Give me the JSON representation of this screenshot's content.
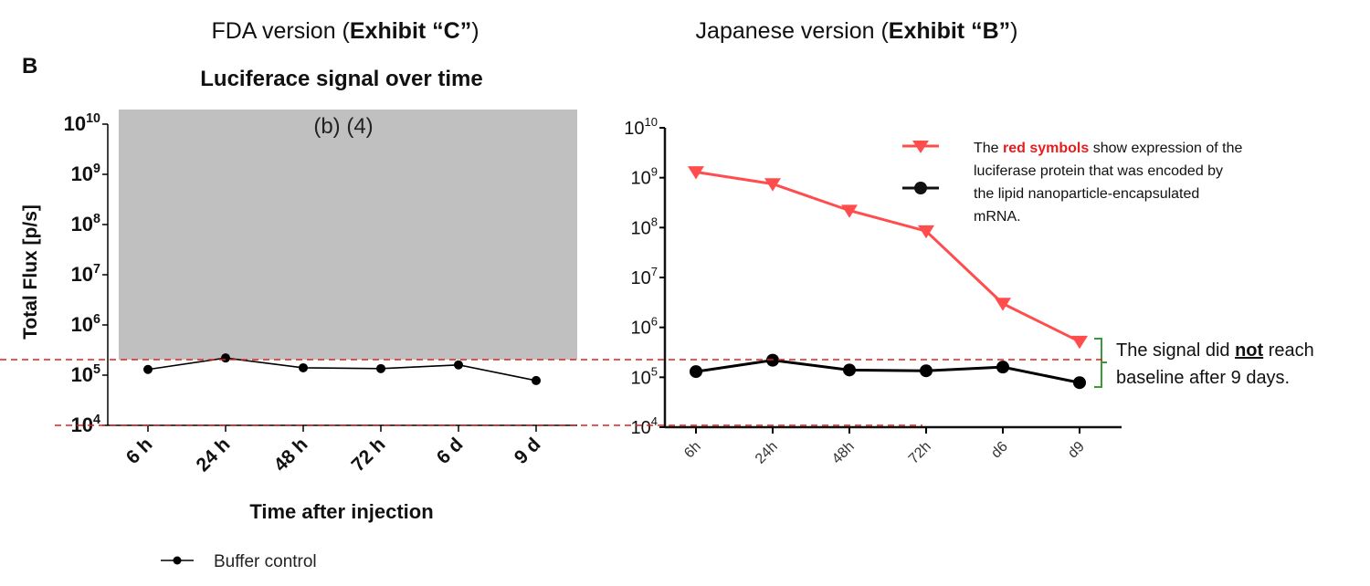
{
  "header": {
    "fda_prefix": "FDA version (",
    "fda_bold": "Exhibit “C”",
    "fda_suffix": ")",
    "jp_prefix": "Japanese version (",
    "jp_bold": "Exhibit “B”",
    "jp_suffix": ")",
    "panel_letter": "B"
  },
  "colors": {
    "red": "#ff4d4d",
    "black": "#000000",
    "redaction_gray": "#c0c0c0",
    "dashed_red": "#e02020",
    "bracket_green": "#3a9a3a",
    "red_text": "#e41e1e"
  },
  "chart_data": [
    {
      "type": "line",
      "title": "Luciferace signal over time",
      "xlabel": "Time after injection",
      "ylabel": "Total Flux [p/s]",
      "yscale": "log",
      "ylim": [
        10000,
        10000000000
      ],
      "ytick_exponents": [
        "10",
        "9",
        "8",
        "7",
        "6",
        "5",
        "4"
      ],
      "ytick_base": "10",
      "categories": [
        "6 h",
        "24 h",
        "48 h",
        "72 h",
        "6 d",
        "9 d"
      ],
      "series": [
        {
          "name": "Buffer control",
          "color": "#000000",
          "marker": "circle",
          "values": [
            130000,
            220000,
            140000,
            135000,
            160000,
            78000
          ]
        }
      ],
      "redaction_label": "(b) (4)",
      "legend": {
        "position": "bottom-left",
        "label": "Buffer control"
      }
    },
    {
      "type": "line",
      "title": "",
      "xlabel": "",
      "ylabel": "",
      "yscale": "log",
      "ylim": [
        10000,
        10000000000
      ],
      "ytick_exponents": [
        "10",
        "9",
        "8",
        "7",
        "6",
        "5",
        "4"
      ],
      "ytick_base": "10",
      "categories": [
        "6h",
        "24h",
        "48h",
        "72h",
        "d6",
        "d9"
      ],
      "series": [
        {
          "name": "luciferase mRNA",
          "color": "#ff4d4d",
          "marker": "triangle-down",
          "values": [
            1300000000,
            750000000,
            220000000,
            85000000,
            3000000,
            520000
          ]
        },
        {
          "name": "control",
          "color": "#000000",
          "marker": "circle",
          "values": [
            130000,
            220000,
            140000,
            135000,
            160000,
            78000
          ]
        }
      ],
      "legend": {
        "position": "top-right"
      }
    }
  ],
  "annotations": {
    "legend_text": {
      "pre": "The ",
      "red": "red symbols",
      "post": " show expression of the",
      "line2": "luciferase protein that was encoded by",
      "line3": "the lipid nanoparticle-encapsulated",
      "line4": "mRNA."
    },
    "bracket_text": {
      "pre": "The signal did ",
      "emph": "not",
      "post": " reach",
      "line2": "baseline after 9 days."
    }
  }
}
